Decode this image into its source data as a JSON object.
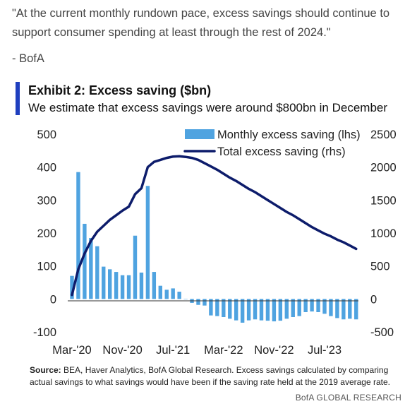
{
  "quote": "\"At the current monthly rundown pace, excess savings should continue to support consumer spending at least through the rest of 2024.\"",
  "attribution": "- BofA",
  "exhibit_title": "Exhibit 2: Excess saving ($bn)",
  "exhibit_subtitle": "We estimate that excess savings were around $800bn in December",
  "source_label": "Source:",
  "source_text": " BEA, Haver Analytics, BofA Global Research. Excess savings calculated by comparing actual savings to what savings would have been if the saving rate held at the 2019 average rate.",
  "brand": "BofA GLOBAL RESEARCH",
  "colors": {
    "bar": "#4fa3e0",
    "line": "#0d1c6b",
    "accent": "#1f3fbf"
  },
  "chart_data": {
    "type": "bar+line",
    "x_tick_labels": [
      "Mar-'20",
      "Nov-'20",
      "Jul-'21",
      "Mar-'22",
      "Nov-'22",
      "Jul-'23"
    ],
    "y_left_ticks": [
      "500",
      "400",
      "300",
      "200",
      "100",
      "0",
      "-100"
    ],
    "y_right_ticks": [
      "2500",
      "2000",
      "1500",
      "1000",
      "500",
      "0",
      "-500"
    ],
    "ylim_left": [
      -100,
      500
    ],
    "ylim_right": [
      -500,
      2500
    ],
    "legend_position": "top-right",
    "categories": [
      "Mar-20",
      "Apr-20",
      "May-20",
      "Jun-20",
      "Jul-20",
      "Aug-20",
      "Sep-20",
      "Oct-20",
      "Nov-20",
      "Dec-20",
      "Jan-21",
      "Feb-21",
      "Mar-21",
      "Apr-21",
      "May-21",
      "Jun-21",
      "Jul-21",
      "Aug-21",
      "Sep-21",
      "Oct-21",
      "Nov-21",
      "Dec-21",
      "Jan-22",
      "Feb-22",
      "Mar-22",
      "Apr-22",
      "May-22",
      "Jun-22",
      "Jul-22",
      "Aug-22",
      "Sep-22",
      "Oct-22",
      "Nov-22",
      "Dec-22",
      "Jan-23",
      "Feb-23",
      "Mar-23",
      "Apr-23",
      "May-23",
      "Jun-23",
      "Jul-23",
      "Aug-23",
      "Sep-23",
      "Oct-23",
      "Nov-23",
      "Dec-23"
    ],
    "series": [
      {
        "name": "Monthly excess saving (lhs)",
        "type": "bar",
        "axis": "left",
        "values": [
          70,
          385,
          228,
          185,
          160,
          98,
          90,
          82,
          72,
          72,
          192,
          80,
          343,
          82,
          40,
          28,
          32,
          22,
          0,
          -12,
          -18,
          -20,
          -50,
          -52,
          -55,
          -60,
          -65,
          -72,
          -65,
          -62,
          -65,
          -66,
          -68,
          -66,
          -60,
          -55,
          -52,
          -40,
          -38,
          -40,
          -45,
          -52,
          -58,
          -62,
          -60,
          -62
        ]
      },
      {
        "name": "Total excess saving (rhs)",
        "type": "line",
        "axis": "right",
        "values": [
          60,
          450,
          690,
          880,
          1020,
          1110,
          1200,
          1270,
          1340,
          1400,
          1590,
          1680,
          2000,
          2080,
          2110,
          2140,
          2160,
          2165,
          2155,
          2140,
          2110,
          2060,
          2010,
          1960,
          1900,
          1840,
          1790,
          1730,
          1670,
          1620,
          1560,
          1500,
          1440,
          1380,
          1320,
          1270,
          1210,
          1150,
          1090,
          1040,
          990,
          950,
          900,
          860,
          810,
          760
        ]
      }
    ]
  }
}
